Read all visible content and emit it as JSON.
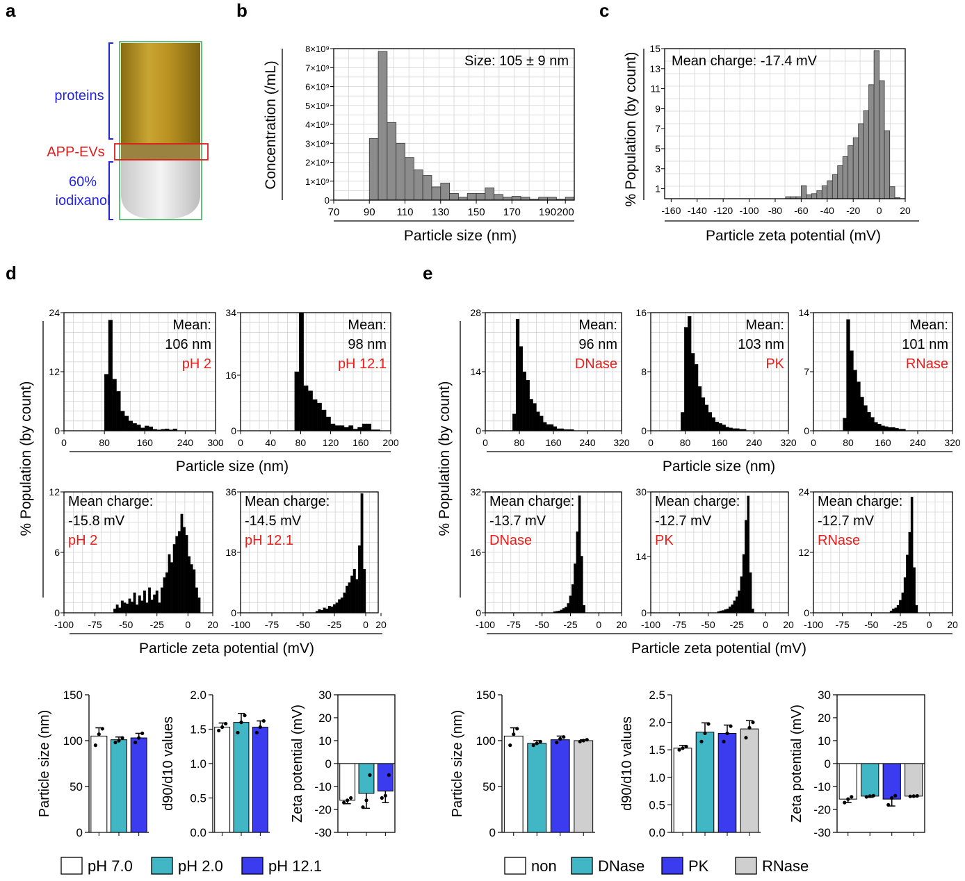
{
  "panel_labels": {
    "a": "a",
    "b": "b",
    "c": "c",
    "d": "d",
    "e": "e"
  },
  "tube": {
    "proteins": "proteins",
    "app_evs": "APP-EVs",
    "iodixanol_l1": "60%",
    "iodixanol_l2": "iodixanol",
    "colors": {
      "proteins": "#2323e6",
      "app_evs": "#e01b1b",
      "iodixanol": "#2323e6",
      "box_green": "#2fa84f",
      "box_red": "#e01b1b"
    }
  },
  "colors": {
    "red_text": "#e8201c",
    "hist_gray": "#8c8c8c",
    "hist_black": "#000000",
    "pH7": "#ffffff",
    "pH2": "#41b6c4",
    "pH12": "#3b3bef",
    "non": "#ffffff",
    "DNase": "#41b6c4",
    "PK": "#3b3bef",
    "RNase": "#cfcfcf"
  },
  "shared_labels": {
    "d_size_xlabel": "Particle size (nm)",
    "d_zeta_xlabel": "Particle zeta potential (mV)",
    "d_ylabel": "% Population (by count)",
    "e_size_xlabel": "Particle size (nm)",
    "e_zeta_xlabel": "Particle zeta potential (mV)",
    "e_ylabel": "% Population (by count)"
  },
  "legends": {
    "d": [
      {
        "label": "pH 7.0",
        "color": "#ffffff"
      },
      {
        "label": "pH 2.0",
        "color": "#41b6c4"
      },
      {
        "label": "pH 12.1",
        "color": "#3b3bef"
      }
    ],
    "e": [
      {
        "label": "non",
        "color": "#ffffff"
      },
      {
        "label": "DNase",
        "color": "#41b6c4"
      },
      {
        "label": "PK",
        "color": "#3b3bef"
      },
      {
        "label": "RNase",
        "color": "#cfcfcf"
      }
    ]
  },
  "chart_data": [
    {
      "id": "b",
      "type": "bar",
      "title": "",
      "annotation": "Size: 105 ± 9 nm",
      "xlabel": "Particle size (nm)",
      "ylabel": "Concentration (/mL)",
      "xlim": [
        70,
        205
      ],
      "ylim": [
        0,
        8
      ],
      "xticks": [
        70,
        90,
        110,
        130,
        150,
        170,
        190,
        200
      ],
      "yticks": [
        0,
        1,
        2,
        3,
        4,
        5,
        6,
        7,
        8
      ],
      "ytick_labels": [
        "0",
        "1×10⁹",
        "2×10⁹",
        "3×10⁹",
        "4×10⁹",
        "5×10⁹",
        "6×10⁹",
        "7×10⁹",
        "8×10⁹"
      ],
      "bin_start": 90,
      "bin_width": 5,
      "values": [
        3.25,
        7.85,
        4.1,
        3.0,
        2.25,
        1.6,
        1.3,
        0.7,
        0.9,
        0.35,
        0.15,
        0.35,
        0.35,
        0.65,
        0.3,
        0.15,
        0.2,
        0.15,
        0.05,
        0.15,
        0.15,
        0.05,
        0.15
      ],
      "color": "#8c8c8c"
    },
    {
      "id": "c",
      "type": "bar",
      "annotation": "Mean charge: -17.4 mV",
      "xlabel": "Particle zeta potential (mV)",
      "ylabel": "% Population (by count)",
      "xlim": [
        -165,
        20
      ],
      "ylim": [
        0,
        15
      ],
      "xticks": [
        -160,
        -140,
        -120,
        -100,
        -80,
        -60,
        -40,
        -20,
        0,
        20
      ],
      "yticks": [
        1,
        3,
        5,
        7,
        9,
        11,
        13,
        15
      ],
      "bin_start": -72,
      "bin_width": 4,
      "values": [
        0.2,
        0.2,
        0.2,
        1.3,
        0.4,
        0.5,
        0.8,
        1.3,
        1.8,
        2.4,
        3.3,
        4.2,
        5.3,
        6.1,
        7.5,
        8.8,
        11.4,
        14.8,
        11.8,
        6.8,
        1.2,
        0.1
      ],
      "color": "#8c8c8c"
    },
    {
      "id": "d1",
      "type": "bar",
      "annotation_lines": [
        "Mean:",
        "106 nm"
      ],
      "condition": "pH 2",
      "xlim": [
        0,
        300
      ],
      "ylim": [
        0,
        24
      ],
      "xticks": [
        0,
        80,
        160,
        240,
        300
      ],
      "yticks": [
        0,
        12,
        24
      ],
      "bin_start": 80,
      "bin_width": 8,
      "values": [
        11.5,
        22.5,
        10.5,
        8.0,
        4.0,
        3.0,
        2.0,
        1.5,
        1.2,
        0.6,
        1.0,
        0.8,
        0.3,
        0.2,
        0.3,
        0.4,
        0.2,
        0.4
      ],
      "color": "#000000"
    },
    {
      "id": "d2",
      "type": "bar",
      "annotation_lines": [
        "Mean:",
        "98 nm"
      ],
      "condition": "pH 12.1",
      "xlim": [
        0,
        200
      ],
      "ylim": [
        0,
        34
      ],
      "xticks": [
        0,
        40,
        80,
        120,
        160,
        200
      ],
      "yticks": [
        0,
        16,
        34
      ],
      "bin_start": 72,
      "bin_width": 6,
      "values": [
        17,
        34,
        13,
        11.5,
        9,
        8,
        6,
        4,
        2,
        1.5,
        1.5,
        1,
        1.5,
        0.5,
        1,
        2,
        2,
        0.3,
        0.3
      ],
      "color": "#000000"
    },
    {
      "id": "d3",
      "type": "bar",
      "annotation_lines": [
        "Mean charge:",
        "-15.8 mV"
      ],
      "condition": "pH 2",
      "xlim": [
        -100,
        20
      ],
      "ylim": [
        0,
        12
      ],
      "xticks": [
        -100,
        -75,
        -50,
        -25,
        0,
        20
      ],
      "yticks": [
        0,
        6,
        12
      ],
      "bin_start": -60,
      "bin_width": 2,
      "values": [
        0.4,
        0.8,
        0.5,
        1.2,
        1.0,
        0.9,
        1.4,
        1.1,
        2.0,
        0.8,
        1.7,
        1.2,
        2.2,
        1.0,
        2.5,
        1.3,
        1.8,
        2.2,
        1.0,
        2.5,
        3.5,
        4.0,
        5.8,
        5.0,
        6.8,
        7.6,
        8.1,
        9.8,
        8.5,
        7.7,
        5.6,
        4.8,
        4.3,
        2.5,
        1.5
      ],
      "color": "#000000"
    },
    {
      "id": "d4",
      "type": "bar",
      "annotation_lines": [
        "Mean charge:",
        "-14.5 mV"
      ],
      "condition": "pH 12.1",
      "xlim": [
        -100,
        10
      ],
      "ylim": [
        0,
        36
      ],
      "xticks": [
        -100,
        -75,
        -50,
        -25,
        0,
        20
      ],
      "yticks": [
        0,
        18,
        36
      ],
      "bin_start": -40,
      "bin_width": 2,
      "values": [
        0.5,
        1.0,
        0.8,
        1.5,
        1.2,
        2.0,
        1.8,
        2.5,
        3.0,
        4.0,
        4.5,
        6.0,
        8.0,
        9.0,
        11.0,
        13.0,
        10.0,
        20.0,
        35.5,
        13.0
      ],
      "color": "#000000"
    },
    {
      "id": "e1",
      "type": "bar",
      "annotation_lines": [
        "Mean:",
        "96 nm"
      ],
      "condition": "DNase",
      "xlim": [
        0,
        320
      ],
      "ylim": [
        0,
        28
      ],
      "xticks": [
        0,
        80,
        160,
        240,
        320
      ],
      "yticks": [
        0,
        14,
        28
      ],
      "bin_start": 64,
      "bin_width": 8,
      "values": [
        4,
        26.5,
        20,
        14,
        12,
        7.5,
        6.5,
        4.5,
        3.5,
        2,
        1.5,
        1.5,
        1,
        0.5,
        0.5,
        0.3,
        0.3,
        0.3
      ],
      "color": "#000000"
    },
    {
      "id": "e2",
      "type": "bar",
      "annotation_lines": [
        "Mean:",
        "103 nm"
      ],
      "condition": "PK",
      "xlim": [
        0,
        320
      ],
      "ylim": [
        0,
        16
      ],
      "xticks": [
        0,
        80,
        160,
        240,
        320
      ],
      "yticks": [
        0,
        8,
        16
      ],
      "bin_start": 70,
      "bin_width": 8,
      "values": [
        2.5,
        14,
        15.5,
        10.5,
        9,
        6,
        4.5,
        3.5,
        2.5,
        1.8,
        1.2,
        1,
        0.8,
        0.5,
        0.4,
        0.3,
        0.3,
        0.2,
        0.2
      ],
      "color": "#000000"
    },
    {
      "id": "e3",
      "type": "bar",
      "annotation_lines": [
        "Mean:",
        "101 nm"
      ],
      "condition": "RNase",
      "xlim": [
        0,
        320
      ],
      "ylim": [
        0,
        14
      ],
      "xticks": [
        0,
        80,
        160,
        240,
        320
      ],
      "yticks": [
        0,
        7,
        14
      ],
      "bin_start": 68,
      "bin_width": 8,
      "values": [
        1.5,
        13.2,
        9.5,
        7.2,
        5.8,
        4.0,
        3.0,
        2.2,
        1.6,
        1.0,
        0.8,
        0.6,
        0.5,
        0.4,
        0.4,
        0.3,
        0.2,
        0.2
      ],
      "color": "#000000"
    },
    {
      "id": "e4",
      "type": "bar",
      "annotation_lines": [
        "Mean charge:",
        "-13.7 mV"
      ],
      "condition": "DNase",
      "xlim": [
        -100,
        20
      ],
      "ylim": [
        0,
        32
      ],
      "xticks": [
        -100,
        -75,
        -50,
        -25,
        0,
        20
      ],
      "yticks": [
        0,
        16,
        32
      ],
      "bin_start": -40,
      "bin_width": 2,
      "values": [
        0.3,
        0.4,
        0.5,
        0.8,
        1.2,
        1.5,
        2.5,
        4.5,
        7.5,
        13.0,
        21.5,
        31.0,
        15.0,
        2.0
      ],
      "color": "#000000"
    },
    {
      "id": "e5",
      "type": "bar",
      "annotation_lines": [
        "Mean charge:",
        "-12.7 mV"
      ],
      "condition": "PK",
      "xlim": [
        -100,
        20
      ],
      "ylim": [
        0,
        30
      ],
      "xticks": [
        -100,
        -75,
        -50,
        -25,
        0,
        20
      ],
      "yticks": [
        0,
        14,
        30
      ],
      "bin_start": -42,
      "bin_width": 2,
      "values": [
        0.3,
        0.5,
        0.6,
        0.8,
        1.0,
        1.5,
        2.0,
        3.0,
        4.0,
        5.5,
        9.0,
        14.5,
        23.0,
        29.0,
        10.0,
        1.0
      ],
      "color": "#000000"
    },
    {
      "id": "e6",
      "type": "bar",
      "annotation_lines": [
        "Mean charge:",
        "-12.7 mV"
      ],
      "condition": "RNase",
      "xlim": [
        -100,
        20
      ],
      "ylim": [
        0,
        24
      ],
      "xticks": [
        -100,
        -75,
        -50,
        -25,
        0,
        20
      ],
      "yticks": [
        0,
        12,
        24
      ],
      "bin_start": -34,
      "bin_width": 2,
      "values": [
        0.4,
        0.8,
        1.0,
        1.5,
        2.5,
        4.0,
        7.0,
        11.5,
        16.0,
        23.0,
        9.0,
        1.5
      ],
      "color": "#000000"
    },
    {
      "id": "d_size",
      "type": "bar",
      "ylabel": "Particle size (nm)",
      "ylim": [
        0,
        150
      ],
      "yticks": [
        0,
        50,
        100,
        150
      ],
      "categories": [
        "pH 7.0",
        "pH 2.0",
        "pH 12.1"
      ],
      "values": [
        105,
        101,
        103
      ],
      "errors": [
        9,
        3,
        5
      ],
      "points": [
        [
          95,
          107,
          113
        ],
        [
          98,
          100,
          103
        ],
        [
          98,
          103,
          108
        ]
      ]
    },
    {
      "id": "d_d90",
      "type": "bar",
      "ylabel": "d90/d10 values",
      "ylim": [
        0,
        2.0
      ],
      "yticks": [
        0,
        0.5,
        1.0,
        1.5,
        2.0
      ],
      "ytick_labels": [
        "0.0",
        "0.5",
        "1.0",
        "1.5",
        "2.0"
      ],
      "categories": [
        "pH 7.0",
        "pH 2.0",
        "pH 12.1"
      ],
      "values": [
        1.53,
        1.6,
        1.53
      ],
      "errors": [
        0.06,
        0.13,
        0.09
      ],
      "points": [
        [
          1.48,
          1.53,
          1.58
        ],
        [
          1.45,
          1.6,
          1.7
        ],
        [
          1.45,
          1.53,
          1.62
        ]
      ]
    },
    {
      "id": "d_zeta",
      "type": "bar",
      "ylabel": "Zeta potential (mV)",
      "ylim": [
        -30,
        30
      ],
      "yticks": [
        -30,
        -20,
        -10,
        0,
        10,
        20,
        30
      ],
      "categories": [
        "pH 7.0",
        "pH 2.0",
        "pH 12.1"
      ],
      "values": [
        -16,
        -13,
        -12
      ],
      "errors": [
        1.5,
        6.5,
        5.0
      ],
      "points": [
        [
          -17,
          -16,
          -15
        ],
        [
          -19,
          -16,
          -5
        ],
        [
          -15,
          -14,
          -5
        ]
      ]
    },
    {
      "id": "e_size",
      "type": "bar",
      "ylabel": "Particle size (nm)",
      "ylim": [
        0,
        150
      ],
      "yticks": [
        0,
        50,
        100,
        150
      ],
      "categories": [
        "non",
        "DNase",
        "PK",
        "RNase"
      ],
      "values": [
        105,
        97,
        101,
        100
      ],
      "errors": [
        9,
        3,
        4,
        1
      ],
      "points": [
        [
          95,
          107,
          113
        ],
        [
          95,
          97,
          99
        ],
        [
          98,
          102,
          104
        ],
        [
          99,
          100,
          101
        ]
      ]
    },
    {
      "id": "e_d90",
      "type": "bar",
      "ylabel": "d90/d10 values",
      "ylim": [
        0,
        2.5
      ],
      "yticks": [
        0,
        0.5,
        1.0,
        1.5,
        2.0,
        2.5
      ],
      "ytick_labels": [
        "0.0",
        "0.5",
        "1.0",
        "1.5",
        "2.0",
        "2.5"
      ],
      "categories": [
        "non",
        "DNase",
        "PK",
        "RNase"
      ],
      "values": [
        1.53,
        1.82,
        1.8,
        1.88
      ],
      "errors": [
        0.05,
        0.17,
        0.15,
        0.15
      ],
      "points": [
        [
          1.5,
          1.53,
          1.56
        ],
        [
          1.65,
          1.8,
          1.97
        ],
        [
          1.65,
          1.8,
          1.93
        ],
        [
          1.72,
          1.9,
          2.0
        ]
      ]
    },
    {
      "id": "e_zeta",
      "type": "bar",
      "ylabel": "Zeta potential (mV)",
      "ylim": [
        -30,
        30
      ],
      "yticks": [
        -30,
        -20,
        -10,
        0,
        10,
        20,
        30
      ],
      "categories": [
        "non",
        "DNase",
        "PK",
        "RNase"
      ],
      "values": [
        -15.5,
        -14.2,
        -15.5,
        -14.2
      ],
      "errors": [
        1.5,
        0.5,
        3.0,
        0.3
      ],
      "points": [
        [
          -17,
          -15.5,
          -14.5
        ],
        [
          -14.5,
          -14.2,
          -14
        ],
        [
          -18,
          -15,
          -14
        ],
        [
          -14.3,
          -14.2,
          -14.1
        ]
      ]
    }
  ]
}
